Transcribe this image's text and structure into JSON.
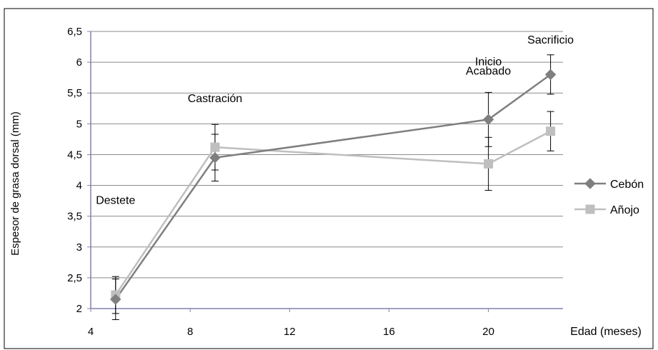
{
  "chart_data": {
    "type": "line",
    "title": "",
    "xlabel": "Edad (meses)",
    "ylabel": "Espesor de grasa dorsal (mm)",
    "xlim": [
      4,
      23
    ],
    "ylim": [
      2,
      6.5
    ],
    "x_ticks": [
      "4",
      "8",
      "12",
      "16",
      "20"
    ],
    "y_ticks": [
      "2",
      "2,5",
      "3",
      "3,5",
      "4",
      "4,5",
      "5",
      "5,5",
      "6",
      "6,5"
    ],
    "grid": true,
    "legend_position": "right",
    "series": [
      {
        "name": "Cebón",
        "color": "#7f7f7f",
        "marker": "diamond",
        "x": [
          5,
          9,
          20,
          22.5
        ],
        "values": [
          2.15,
          4.45,
          5.07,
          5.8
        ],
        "error": [
          0.33,
          0.38,
          0.44,
          0.32
        ]
      },
      {
        "name": "Añojo",
        "color": "#bfbfbf",
        "marker": "square",
        "x": [
          5,
          9,
          20,
          22.5
        ],
        "values": [
          2.22,
          4.62,
          4.35,
          4.88
        ],
        "error": [
          0.3,
          0.37,
          0.43,
          0.32
        ]
      }
    ],
    "annotations": [
      {
        "text": "Destete",
        "x": 5,
        "y": 3.7
      },
      {
        "text": "Castración",
        "x": 9,
        "y": 5.35
      },
      {
        "text": "Inicio",
        "x": 20,
        "y": 5.95
      },
      {
        "text": "Acabado",
        "x": 20,
        "y": 5.8
      },
      {
        "text": "Sacrificio",
        "x": 22.5,
        "y": 6.3
      }
    ]
  }
}
